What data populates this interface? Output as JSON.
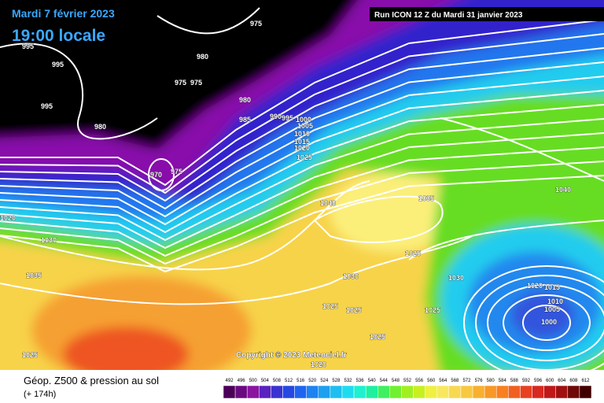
{
  "header": {
    "date": "Mardi 7 février 2023",
    "time": "19:00 locale",
    "run": "Run ICON 12 Z du Mardi 31 janvier 2023"
  },
  "map": {
    "pressure_labels": [
      975,
      995,
      980,
      995,
      975,
      975,
      995,
      980,
      980,
      985,
      990,
      995,
      1000,
      1005,
      1010,
      1015,
      1020,
      1025,
      970,
      975,
      1040,
      1035,
      1040,
      1020,
      1030,
      1025,
      1035,
      1030,
      1030,
      1020,
      1015,
      1010,
      1005,
      1000,
      1025,
      1025,
      1025,
      1025,
      1025,
      1020
    ],
    "copyright": "Copyright © 2023 Meteociel.fr"
  },
  "footer": {
    "title": "Géop. Z500 & pression au sol",
    "lead": "(+ 174h)"
  },
  "legend": {
    "values": [
      492,
      496,
      500,
      504,
      508,
      512,
      516,
      520,
      524,
      528,
      532,
      536,
      540,
      544,
      548,
      552,
      556,
      560,
      564,
      568,
      572,
      576,
      580,
      584,
      588,
      592,
      596,
      600,
      604,
      608,
      612
    ],
    "colors": [
      "#4b0057",
      "#6a0a80",
      "#8a14a0",
      "#5a22c0",
      "#3a32d0",
      "#2448e0",
      "#1e64f0",
      "#1e82f0",
      "#1ea0f0",
      "#1ebef0",
      "#1edcf0",
      "#1ef0d0",
      "#1ef0a0",
      "#40f060",
      "#70f030",
      "#a0f020",
      "#c8f020",
      "#f0f040",
      "#f8e860",
      "#f8d850",
      "#f8c840",
      "#f8b030",
      "#f89828",
      "#f88020",
      "#f06020",
      "#e84020",
      "#d82820",
      "#c01818",
      "#a01010",
      "#700808",
      "#400000"
    ]
  }
}
